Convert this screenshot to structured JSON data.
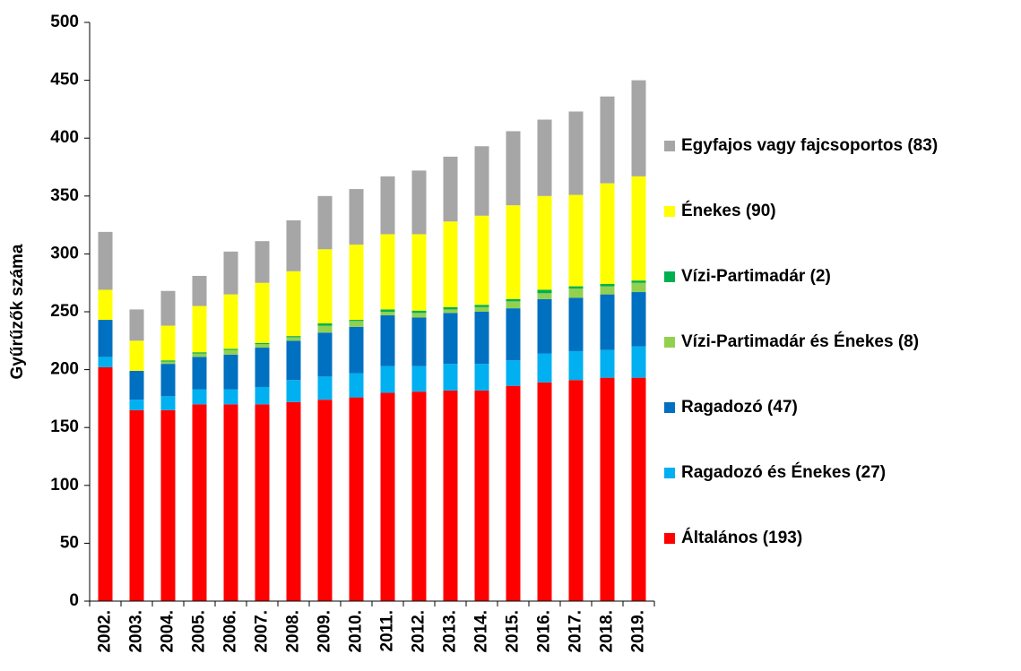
{
  "chart_data": {
    "type": "stacked_bar",
    "y_label": "Gyűrűzők száma",
    "categories": [
      "2002.",
      "2003.",
      "2004.",
      "2005.",
      "2006.",
      "2007.",
      "2008.",
      "2009.",
      "2010.",
      "2011.",
      "2012.",
      "2013.",
      "2014.",
      "2015.",
      "2016.",
      "2017.",
      "2018.",
      "2019."
    ],
    "series": [
      {
        "name": "Általános (193)",
        "color": "#ff0000",
        "values": [
          202,
          165,
          165,
          170,
          170,
          170,
          172,
          174,
          176,
          180,
          181,
          182,
          182,
          186,
          189,
          191,
          193,
          193
        ]
      },
      {
        "name": "Ragadozó és Énekes (27)",
        "color": "#00b0f0",
        "values": [
          9,
          9,
          12,
          13,
          13,
          15,
          19,
          20,
          21,
          23,
          22,
          23,
          23,
          22,
          25,
          25,
          24,
          27
        ]
      },
      {
        "name": "Ragadozó (47)",
        "color": "#0070c0",
        "values": [
          32,
          25,
          28,
          28,
          30,
          34,
          34,
          38,
          40,
          44,
          42,
          44,
          45,
          45,
          47,
          46,
          48,
          47
        ]
      },
      {
        "name": "Vízi-Partimadár és Énekes (8)",
        "color": "#92d050",
        "values": [
          0,
          0,
          2,
          3,
          4,
          3,
          3,
          6,
          5,
          3,
          4,
          3,
          4,
          6,
          5,
          8,
          7,
          8
        ]
      },
      {
        "name": "Vízi-Partimadár (2)",
        "color": "#00b050",
        "values": [
          0,
          0,
          1,
          1,
          1,
          1,
          1,
          2,
          1,
          2,
          2,
          2,
          2,
          2,
          3,
          2,
          2,
          2
        ]
      },
      {
        "name": "Énekes (90)",
        "color": "#ffff00",
        "values": [
          26,
          26,
          30,
          40,
          47,
          52,
          56,
          64,
          65,
          65,
          66,
          74,
          77,
          81,
          81,
          79,
          87,
          90
        ]
      },
      {
        "name": "Egyfajos vagy fajcsoportos (83)",
        "color": "#a6a6a6",
        "values": [
          50,
          27,
          30,
          26,
          37,
          36,
          44,
          46,
          48,
          50,
          55,
          56,
          60,
          64,
          66,
          72,
          75,
          83
        ]
      }
    ],
    "ylim": [
      0,
      500
    ],
    "yticks": [
      0,
      50,
      100,
      150,
      200,
      250,
      300,
      350,
      400,
      450,
      500
    ],
    "grid": false,
    "legend": "right"
  }
}
